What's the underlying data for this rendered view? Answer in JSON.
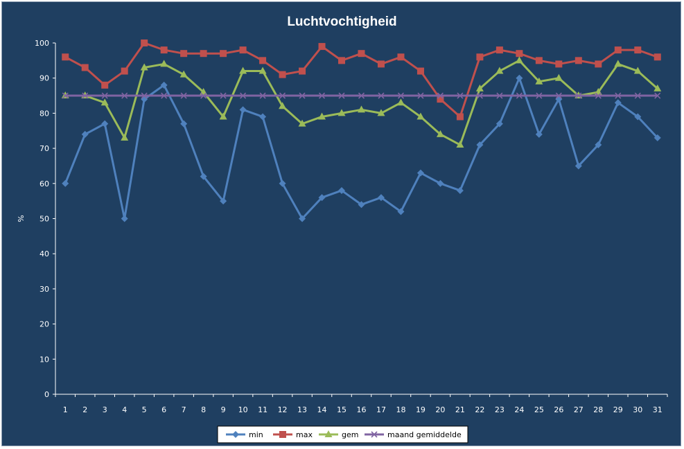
{
  "chart_data": {
    "type": "line",
    "title": "Luchtvochtigheid",
    "xlabel": "",
    "ylabel": "%",
    "ylim": [
      0,
      100
    ],
    "yticks": [
      0,
      10,
      20,
      30,
      40,
      50,
      60,
      70,
      80,
      90,
      100
    ],
    "categories": [
      "1",
      "2",
      "3",
      "4",
      "5",
      "6",
      "7",
      "8",
      "9",
      "10",
      "11",
      "12",
      "13",
      "14",
      "15",
      "16",
      "17",
      "18",
      "19",
      "20",
      "21",
      "22",
      "23",
      "24",
      "25",
      "26",
      "27",
      "28",
      "29",
      "30",
      "31"
    ],
    "grid": false,
    "legend_position": "bottom",
    "series": [
      {
        "name": "min",
        "color": "#4f81bd",
        "marker": "diamond",
        "values": [
          60,
          74,
          77,
          50,
          84,
          88,
          77,
          62,
          55,
          81,
          79,
          60,
          50,
          56,
          58,
          54,
          56,
          52,
          63,
          60,
          58,
          71,
          77,
          90,
          74,
          84,
          65,
          71,
          83,
          79,
          73
        ]
      },
      {
        "name": "max",
        "color": "#c0504d",
        "marker": "square",
        "values": [
          96,
          93,
          88,
          92,
          100,
          98,
          97,
          97,
          97,
          98,
          95,
          91,
          92,
          99,
          95,
          97,
          94,
          96,
          92,
          84,
          79,
          96,
          98,
          97,
          95,
          94,
          95,
          94,
          98,
          98,
          96
        ]
      },
      {
        "name": "gem",
        "color": "#9bbb59",
        "marker": "triangle",
        "values": [
          85,
          85,
          83,
          73,
          93,
          94,
          91,
          86,
          79,
          92,
          92,
          82,
          77,
          79,
          80,
          81,
          80,
          83,
          79,
          74,
          71,
          87,
          92,
          95,
          89,
          90,
          85,
          86,
          94,
          92,
          87
        ]
      },
      {
        "name": "maand gemiddelde",
        "color": "#8064a2",
        "marker": "x",
        "values": [
          85,
          85,
          85,
          85,
          85,
          85,
          85,
          85,
          85,
          85,
          85,
          85,
          85,
          85,
          85,
          85,
          85,
          85,
          85,
          85,
          85,
          85,
          85,
          85,
          85,
          85,
          85,
          85,
          85,
          85,
          85
        ]
      }
    ]
  }
}
